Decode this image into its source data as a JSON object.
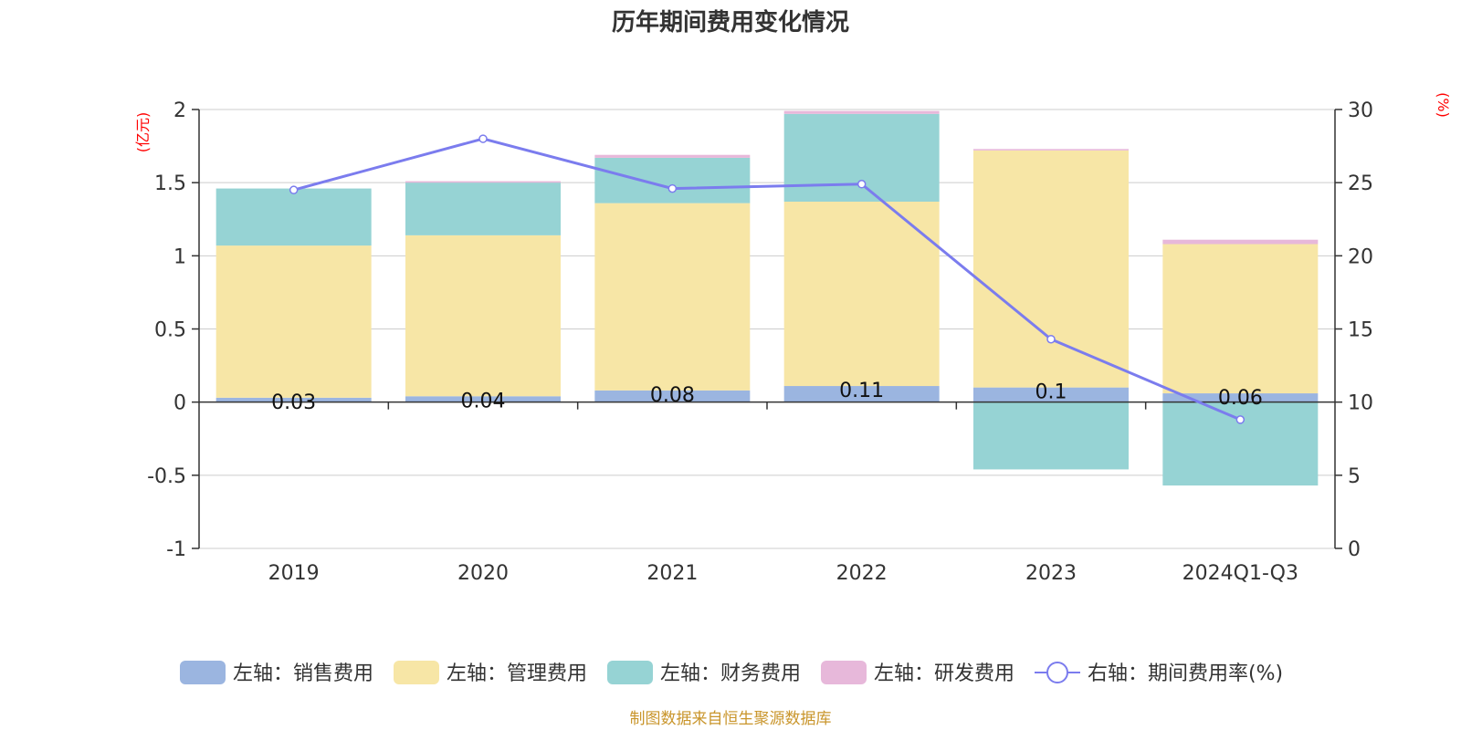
{
  "chart_data": {
    "type": "bar",
    "stacked": true,
    "title": "历年期间费用变化情况",
    "categories": [
      "2019",
      "2020",
      "2021",
      "2022",
      "2023",
      "2024Q1-Q3"
    ],
    "left_axis": {
      "unit": "(亿元)",
      "ylim": [
        -1,
        2
      ],
      "ticks": [
        "-1",
        "-0.5",
        "0",
        "0.5",
        "1",
        "1.5",
        "2"
      ],
      "tick_values": [
        -1,
        -0.5,
        0,
        0.5,
        1,
        1.5,
        2
      ]
    },
    "right_axis": {
      "unit": "(%)",
      "ylim": [
        0,
        30
      ],
      "ticks": [
        "0",
        "5",
        "10",
        "15",
        "20",
        "25",
        "30"
      ],
      "tick_values": [
        0,
        5,
        10,
        15,
        20,
        25,
        30
      ]
    },
    "series": [
      {
        "name": "左轴：销售费用",
        "axis": "left",
        "type": "bar",
        "color": "#9bb5e0",
        "values": [
          0.03,
          0.04,
          0.08,
          0.11,
          0.1,
          0.06
        ],
        "labels": [
          "0.03",
          "0.04",
          "0.08",
          "0.11",
          "0.1",
          "0.06"
        ]
      },
      {
        "name": "左轴：管理费用",
        "axis": "left",
        "type": "bar",
        "color": "#f7e6a6",
        "values": [
          1.04,
          1.1,
          1.28,
          1.26,
          1.62,
          1.02
        ]
      },
      {
        "name": "左轴：财务费用",
        "axis": "left",
        "type": "bar",
        "color": "#96d3d4",
        "values": [
          0.39,
          0.36,
          0.31,
          0.6,
          -0.46,
          -0.57
        ]
      },
      {
        "name": "左轴：研发费用",
        "axis": "left",
        "type": "bar",
        "color": "#e7b8da",
        "values": [
          0.0,
          0.01,
          0.02,
          0.02,
          0.01,
          0.03
        ]
      },
      {
        "name": "右轴：期间费用率(%)",
        "axis": "right",
        "type": "line",
        "color": "#7b7cee",
        "values": [
          24.5,
          28.0,
          24.6,
          24.9,
          14.3,
          8.8
        ]
      }
    ],
    "source": "制图数据来自恒生聚源数据库",
    "colors": {
      "axis": "#333333",
      "grid": "#cccccc",
      "unit_label": "#ff0000",
      "source": "#c9952b"
    }
  }
}
